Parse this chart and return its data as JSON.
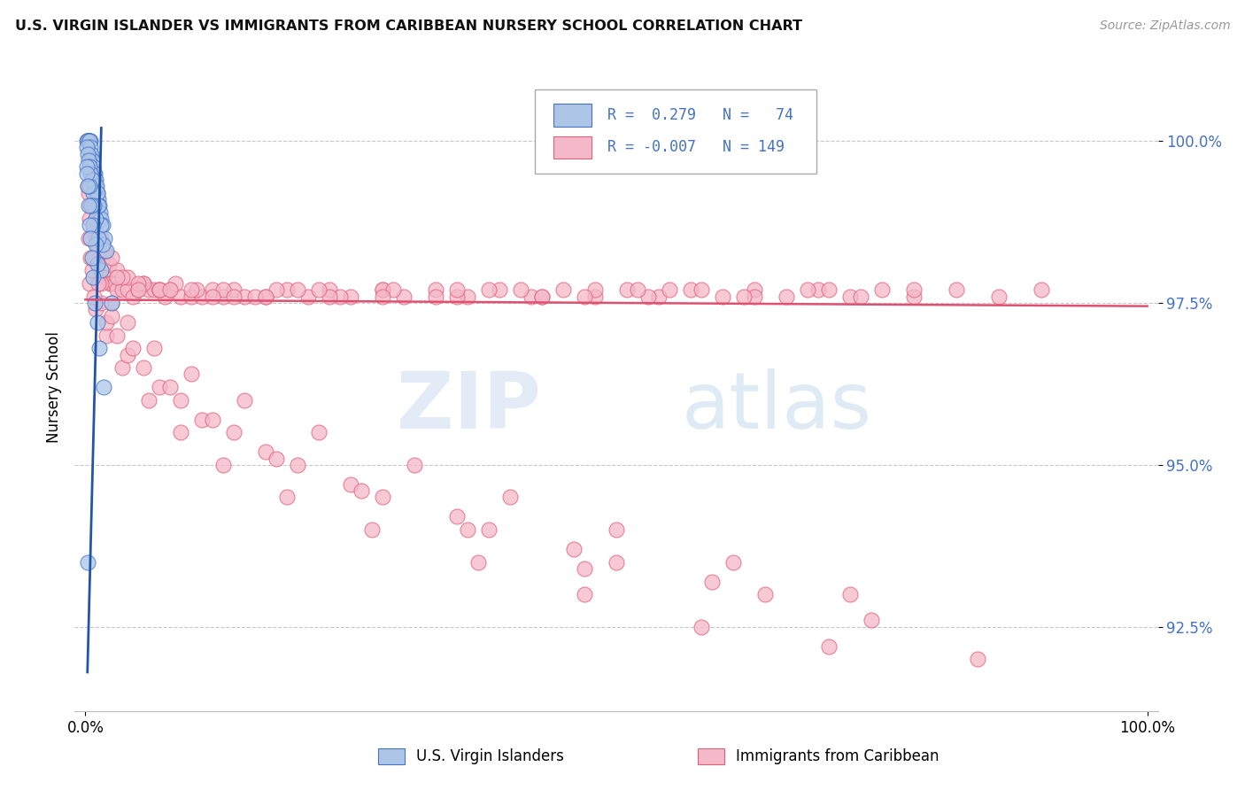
{
  "title": "U.S. VIRGIN ISLANDER VS IMMIGRANTS FROM CARIBBEAN NURSERY SCHOOL CORRELATION CHART",
  "source": "Source: ZipAtlas.com",
  "ylabel": "Nursery School",
  "xlim": [
    -1,
    101
  ],
  "ylim": [
    91.2,
    101.2
  ],
  "yticks": [
    92.5,
    95.0,
    97.5,
    100.0
  ],
  "ytick_labels": [
    "92.5%",
    "95.0%",
    "97.5%",
    "100.0%"
  ],
  "color_blue_fill": "#adc6e8",
  "color_blue_edge": "#4472c4",
  "color_pink_fill": "#f4b8c8",
  "color_pink_edge": "#e0607a",
  "color_pink_line": "#e05070",
  "color_blue_line": "#2255aa",
  "color_grid": "#c8c8c8",
  "watermark_zip": "ZIP",
  "watermark_atlas": "atlas",
  "blue_x": [
    0.2,
    0.2,
    0.2,
    0.3,
    0.3,
    0.3,
    0.4,
    0.4,
    0.4,
    0.5,
    0.5,
    0.5,
    0.6,
    0.6,
    0.7,
    0.7,
    0.8,
    0.8,
    0.9,
    0.9,
    1.0,
    1.0,
    1.1,
    1.2,
    1.3,
    1.4,
    1.5,
    1.6,
    1.8,
    2.0,
    0.15,
    0.25,
    0.35,
    0.45,
    0.55,
    0.65,
    0.75,
    0.85,
    0.95,
    1.05,
    1.15,
    1.25,
    1.45,
    1.65,
    0.1,
    0.2,
    0.3,
    0.4,
    0.5,
    0.6,
    0.7,
    0.8,
    1.0,
    1.2,
    1.5,
    2.5,
    0.15,
    0.35,
    0.55,
    0.75,
    0.95,
    1.15,
    0.1,
    0.2,
    0.3,
    0.4,
    0.5,
    0.6,
    0.7,
    0.9,
    1.1,
    1.3,
    1.7,
    0.25
  ],
  "blue_y": [
    100.0,
    100.0,
    100.0,
    100.0,
    100.0,
    100.0,
    100.0,
    100.0,
    100.0,
    100.0,
    99.8,
    99.8,
    99.7,
    99.6,
    99.6,
    99.5,
    99.5,
    99.4,
    99.4,
    99.3,
    99.3,
    99.2,
    99.2,
    99.1,
    99.0,
    98.9,
    98.8,
    98.7,
    98.5,
    98.3,
    100.0,
    100.0,
    100.0,
    99.9,
    99.8,
    99.7,
    99.6,
    99.5,
    99.4,
    99.3,
    99.2,
    99.0,
    98.7,
    98.4,
    99.9,
    99.8,
    99.7,
    99.6,
    99.5,
    99.4,
    99.2,
    99.0,
    98.8,
    98.5,
    98.0,
    97.5,
    99.6,
    99.3,
    99.0,
    98.7,
    98.4,
    98.1,
    99.5,
    99.3,
    99.0,
    98.7,
    98.5,
    98.2,
    97.9,
    97.5,
    97.2,
    96.8,
    96.2,
    93.5
  ],
  "pink_x": [
    0.3,
    0.5,
    0.8,
    1.0,
    1.2,
    1.5,
    1.8,
    2.0,
    2.3,
    2.5,
    2.8,
    3.0,
    3.5,
    4.0,
    4.5,
    5.0,
    5.5,
    6.0,
    6.5,
    7.0,
    7.5,
    8.0,
    9.0,
    10.0,
    11.0,
    12.0,
    13.0,
    14.0,
    15.0,
    17.0,
    19.0,
    21.0,
    23.0,
    25.0,
    28.0,
    30.0,
    33.0,
    36.0,
    39.0,
    42.0,
    45.0,
    48.0,
    51.0,
    54.0,
    57.0,
    60.0,
    63.0,
    66.0,
    69.0,
    72.0,
    75.0,
    78.0,
    82.0,
    86.0,
    90.0,
    0.4,
    0.7,
    1.1,
    1.6,
    2.2,
    3.0,
    4.0,
    5.5,
    7.0,
    8.5,
    10.5,
    13.0,
    16.0,
    20.0,
    24.0,
    28.0,
    33.0,
    38.0,
    43.0,
    48.0,
    53.0,
    58.0,
    63.0,
    68.0,
    73.0,
    78.0,
    0.6,
    1.0,
    1.5,
    2.5,
    3.5,
    5.0,
    7.0,
    10.0,
    14.0,
    18.0,
    23.0,
    29.0,
    35.0,
    41.0,
    47.0,
    55.0,
    62.0,
    70.0,
    0.2,
    0.5,
    1.0,
    1.8,
    3.0,
    5.0,
    8.0,
    12.0,
    17.0,
    22.0,
    28.0,
    35.0,
    43.0,
    52.0,
    0.3,
    0.8,
    1.5,
    2.5,
    4.0,
    6.5,
    10.0,
    15.0,
    22.0,
    31.0,
    40.0,
    50.0,
    61.0,
    72.0,
    0.4,
    1.0,
    2.0,
    3.5,
    6.0,
    9.0,
    13.0,
    19.0,
    27.0,
    37.0,
    47.0,
    58.0,
    70.0,
    84.0,
    0.6,
    1.5,
    3.0,
    5.5,
    9.0,
    14.0,
    20.0,
    28.0,
    38.0,
    50.0,
    64.0,
    0.8,
    2.0,
    4.0,
    7.0,
    11.0,
    17.0,
    25.0,
    35.0,
    46.0,
    59.0,
    74.0,
    0.5,
    1.2,
    2.5,
    4.5,
    8.0,
    12.0,
    18.0,
    26.0,
    36.0,
    47.0
  ],
  "pink_y": [
    99.2,
    99.0,
    98.7,
    98.5,
    98.3,
    98.2,
    98.0,
    97.9,
    97.8,
    97.8,
    97.8,
    97.7,
    97.7,
    97.7,
    97.6,
    97.7,
    97.8,
    97.7,
    97.7,
    97.7,
    97.6,
    97.7,
    97.6,
    97.6,
    97.6,
    97.7,
    97.6,
    97.7,
    97.6,
    97.6,
    97.7,
    97.6,
    97.7,
    97.6,
    97.7,
    97.6,
    97.7,
    97.6,
    97.7,
    97.6,
    97.7,
    97.6,
    97.7,
    97.6,
    97.7,
    97.6,
    97.7,
    97.6,
    97.7,
    97.6,
    97.7,
    97.6,
    97.7,
    97.6,
    97.7,
    98.8,
    98.6,
    98.4,
    98.2,
    98.1,
    98.0,
    97.9,
    97.8,
    97.7,
    97.8,
    97.7,
    97.7,
    97.6,
    97.7,
    97.6,
    97.7,
    97.6,
    97.7,
    97.6,
    97.7,
    97.6,
    97.7,
    97.6,
    97.7,
    97.6,
    97.7,
    99.0,
    98.8,
    98.5,
    98.2,
    97.9,
    97.8,
    97.7,
    97.7,
    97.6,
    97.7,
    97.6,
    97.7,
    97.6,
    97.7,
    97.6,
    97.7,
    97.6,
    97.7,
    99.3,
    99.0,
    98.6,
    98.3,
    97.9,
    97.7,
    97.7,
    97.6,
    97.6,
    97.7,
    97.6,
    97.7,
    97.6,
    97.7,
    98.5,
    98.2,
    97.8,
    97.5,
    97.2,
    96.8,
    96.4,
    96.0,
    95.5,
    95.0,
    94.5,
    94.0,
    93.5,
    93.0,
    97.8,
    97.4,
    97.0,
    96.5,
    96.0,
    95.5,
    95.0,
    94.5,
    94.0,
    93.5,
    93.0,
    92.5,
    92.2,
    92.0,
    98.0,
    97.5,
    97.0,
    96.5,
    96.0,
    95.5,
    95.0,
    94.5,
    94.0,
    93.5,
    93.0,
    97.6,
    97.2,
    96.7,
    96.2,
    95.7,
    95.2,
    94.7,
    94.2,
    93.7,
    93.2,
    92.6,
    98.2,
    97.8,
    97.3,
    96.8,
    96.2,
    95.7,
    95.1,
    94.6,
    94.0,
    93.4
  ],
  "pink_trend_y_start": 97.55,
  "pink_trend_y_end": 97.45,
  "blue_trend_x1": 0.2,
  "blue_trend_y1": 91.8,
  "blue_trend_x2": 1.5,
  "blue_trend_y2": 100.2
}
